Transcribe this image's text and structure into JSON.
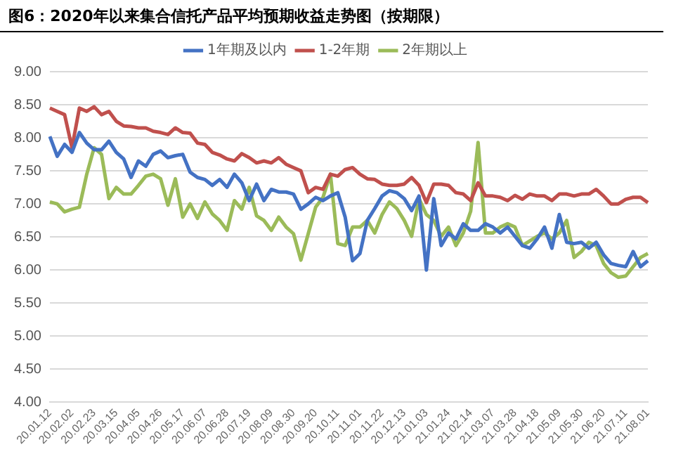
{
  "chart_data": {
    "type": "line",
    "title": "图6：2020年以来集合信托产品平均预期收益走势图（按期限）",
    "categories": [
      "20.01.12",
      null,
      null,
      "20.02.02",
      null,
      null,
      "20.02.23",
      null,
      null,
      "20.03.15",
      null,
      null,
      "20.04.05",
      null,
      null,
      "20.04.26",
      null,
      null,
      "20.05.17",
      null,
      null,
      "20.06.07",
      null,
      null,
      "20.06.28",
      null,
      null,
      "20.07.19",
      null,
      null,
      "20.08.09",
      null,
      null,
      "20.08.30",
      null,
      null,
      "20.09.20",
      null,
      null,
      "20.10.11",
      null,
      null,
      "20.11.01",
      null,
      null,
      "20.11.22",
      null,
      null,
      "20.12.13",
      null,
      null,
      "21.01.03",
      null,
      null,
      "21.01.24",
      null,
      null,
      "21.02.14",
      null,
      null,
      "21.03.07",
      null,
      null,
      "21.03.28",
      null,
      null,
      "21.04.18",
      null,
      null,
      "21.05.09",
      null,
      null,
      "21.05.30",
      null,
      null,
      "21.06.20",
      null,
      null,
      "21.07.11",
      null,
      null,
      "21.08.01"
    ],
    "series": [
      {
        "name": "1年期及以内",
        "color": "#4472c4",
        "values": [
          8.02,
          7.72,
          7.9,
          7.78,
          8.08,
          7.92,
          7.82,
          7.82,
          7.95,
          7.78,
          7.68,
          7.4,
          7.65,
          7.57,
          7.75,
          7.8,
          7.7,
          7.73,
          7.75,
          7.48,
          7.4,
          7.37,
          7.28,
          7.37,
          7.25,
          7.45,
          7.32,
          7.05,
          7.3,
          7.05,
          7.22,
          7.18,
          7.18,
          7.15,
          6.92,
          7.0,
          7.1,
          7.05,
          7.12,
          7.17,
          6.8,
          6.14,
          6.25,
          6.75,
          6.93,
          7.12,
          7.2,
          7.17,
          7.08,
          6.9,
          7.12,
          6.0,
          7.08,
          6.37,
          6.56,
          6.47,
          6.7,
          6.6,
          6.6,
          6.7,
          6.65,
          6.56,
          6.65,
          6.51,
          6.37,
          6.33,
          6.47,
          6.65,
          6.33,
          6.84,
          6.42,
          6.4,
          6.42,
          6.33,
          6.42,
          6.23,
          6.1,
          6.07,
          6.05,
          6.28,
          6.05,
          6.14
        ]
      },
      {
        "name": "1-2年期",
        "color": "#c0504d",
        "values": [
          8.45,
          8.4,
          8.35,
          7.85,
          8.45,
          8.4,
          8.47,
          8.35,
          8.4,
          8.25,
          8.18,
          8.17,
          8.15,
          8.15,
          8.1,
          8.08,
          8.05,
          8.15,
          8.08,
          8.07,
          7.92,
          7.9,
          7.78,
          7.74,
          7.68,
          7.65,
          7.76,
          7.7,
          7.62,
          7.65,
          7.62,
          7.7,
          7.6,
          7.55,
          7.5,
          7.17,
          7.25,
          7.22,
          7.45,
          7.42,
          7.52,
          7.55,
          7.45,
          7.38,
          7.37,
          7.3,
          7.28,
          7.28,
          7.3,
          7.4,
          7.28,
          7.02,
          7.3,
          7.3,
          7.28,
          7.17,
          7.15,
          7.05,
          7.32,
          7.12,
          7.12,
          7.1,
          7.05,
          7.13,
          7.07,
          7.15,
          7.12,
          7.12,
          7.05,
          7.15,
          7.15,
          7.12,
          7.15,
          7.15,
          7.22,
          7.12,
          7.0,
          7.0,
          7.07,
          7.1,
          7.1,
          7.02
        ]
      },
      {
        "name": "2年期以上",
        "color": "#9bbb59",
        "values": [
          7.03,
          7.0,
          6.88,
          6.92,
          6.95,
          7.45,
          7.85,
          7.75,
          7.08,
          7.25,
          7.15,
          7.15,
          7.28,
          7.42,
          7.45,
          7.38,
          6.98,
          7.38,
          6.8,
          7.0,
          6.78,
          7.03,
          6.85,
          6.75,
          6.6,
          7.05,
          6.92,
          7.25,
          6.82,
          6.75,
          6.6,
          6.8,
          6.65,
          6.55,
          6.15,
          6.55,
          6.95,
          7.1,
          7.45,
          6.4,
          6.37,
          6.65,
          6.65,
          6.75,
          6.56,
          6.84,
          7.03,
          6.93,
          6.75,
          6.51,
          7.08,
          6.84,
          6.75,
          6.51,
          6.65,
          6.37,
          6.56,
          6.89,
          7.93,
          6.56,
          6.56,
          6.65,
          6.7,
          6.65,
          6.37,
          6.44,
          6.51,
          6.56,
          6.47,
          6.56,
          6.75,
          6.19,
          6.28,
          6.42,
          6.37,
          6.1,
          5.96,
          5.89,
          5.91,
          6.05,
          6.19,
          6.25
        ]
      }
    ],
    "ylim": [
      4,
      9
    ],
    "yticks": [
      {
        "value": 4,
        "label": "4.00"
      },
      {
        "value": 4.5,
        "label": "4.50"
      },
      {
        "value": 5,
        "label": "5.00"
      },
      {
        "value": 5.5,
        "label": "5.50"
      },
      {
        "value": 6,
        "label": "6.00"
      },
      {
        "value": 6.5,
        "label": "6.50"
      },
      {
        "value": 7,
        "label": "7.00"
      },
      {
        "value": 7.5,
        "label": "7.50"
      },
      {
        "value": 8,
        "label": "8.00"
      },
      {
        "value": 8.5,
        "label": "8.50"
      },
      {
        "value": 9,
        "label": "9.00"
      }
    ],
    "grid": "y",
    "legend": "top",
    "marker": "none",
    "line_style": "solid"
  }
}
